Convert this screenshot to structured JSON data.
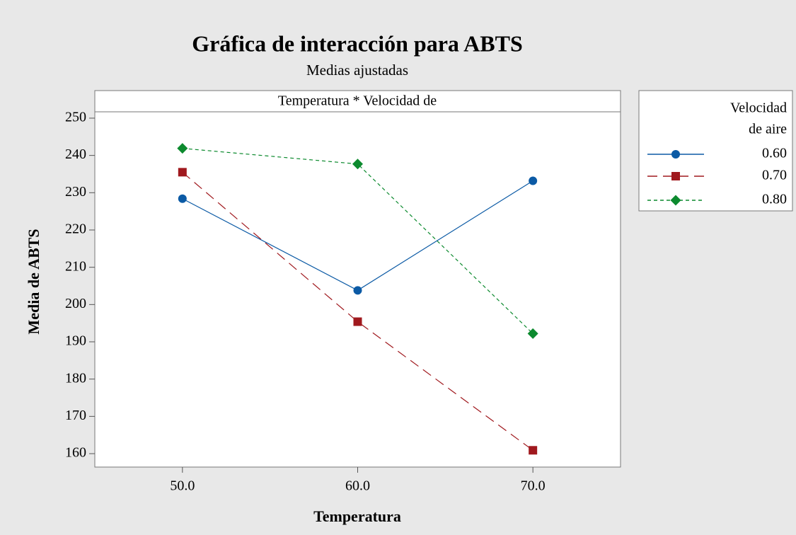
{
  "chart_data": {
    "type": "line",
    "title": "Gráfica de interacción para ABTS",
    "subtitle": "Medias ajustadas",
    "panel_title": "Temperatura * Velocidad de",
    "xlabel": "Temperatura",
    "ylabel": "Media de ABTS",
    "legend_title": [
      "Velocidad",
      "de aire"
    ],
    "x": [
      50,
      60,
      70
    ],
    "xlim": [
      45,
      75
    ],
    "xticks": [
      {
        "value": 50,
        "label": "50.0"
      },
      {
        "value": 60,
        "label": "60.0"
      },
      {
        "value": 70,
        "label": "70.0"
      }
    ],
    "ylim": [
      156.4,
      251.7
    ],
    "yticks": [
      160,
      170,
      180,
      190,
      200,
      210,
      220,
      230,
      240,
      250
    ],
    "series": [
      {
        "name": "0.60",
        "color": "#0b5aa5",
        "dash": "none",
        "marker": "circle",
        "values": [
          228.4,
          203.8,
          233.2
        ]
      },
      {
        "name": "0.70",
        "color": "#a0191e",
        "dash": "14 8",
        "marker": "square",
        "values": [
          235.5,
          195.4,
          160.9
        ]
      },
      {
        "name": "0.80",
        "color": "#0c8a2e",
        "dash": "5 4",
        "marker": "diamond",
        "values": [
          241.9,
          237.7,
          192.2
        ]
      }
    ]
  }
}
